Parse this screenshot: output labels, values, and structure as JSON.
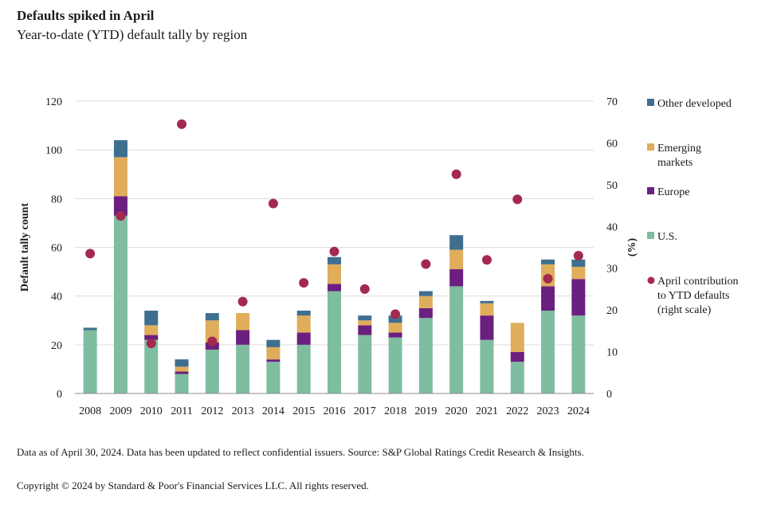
{
  "header": {
    "title": "Defaults spiked in April",
    "subtitle": "Year-to-date (YTD) default tally by region"
  },
  "footer": {
    "note": "Data as of April 30, 2024. Data has been updated to reflect confidential issuers. Source: S&P Global Ratings Credit Research & Insights.",
    "copyright": "Copyright © 2024 by Standard & Poor's Financial Services LLC. All rights reserved."
  },
  "chart_data": {
    "type": "bar",
    "stacked": true,
    "categories": [
      "2008",
      "2009",
      "2010",
      "2011",
      "2012",
      "2013",
      "2014",
      "2015",
      "2016",
      "2017",
      "2018",
      "2019",
      "2020",
      "2021",
      "2022",
      "2023",
      "2024"
    ],
    "ylabel": "Default tally count",
    "y2label": "(%)",
    "ylim": [
      0,
      120
    ],
    "yticks": [
      0,
      20,
      40,
      60,
      80,
      100,
      120
    ],
    "y2lim": [
      0,
      70
    ],
    "y2ticks": [
      0,
      10,
      20,
      30,
      40,
      50,
      60,
      70
    ],
    "grid": true,
    "legend_position": "right",
    "series": [
      {
        "name": "U.S.",
        "color": "#7fbda0",
        "values": [
          26,
          73,
          22,
          8,
          18,
          20,
          13,
          20,
          42,
          24,
          23,
          31,
          44,
          22,
          13,
          34,
          32
        ]
      },
      {
        "name": "Europe",
        "color": "#6b1f7f",
        "values": [
          0,
          8,
          2,
          1,
          3,
          6,
          1,
          5,
          3,
          4,
          2,
          4,
          7,
          10,
          4,
          10,
          15
        ]
      },
      {
        "name": "Emerging markets",
        "color": "#e0ad5b",
        "values": [
          0,
          16,
          4,
          2,
          9,
          7,
          5,
          7,
          8,
          2,
          4,
          5,
          8,
          5,
          12,
          9,
          5
        ]
      },
      {
        "name": "Other developed",
        "color": "#3f6f8f",
        "values": [
          1,
          7,
          6,
          3,
          3,
          0,
          3,
          2,
          3,
          2,
          3,
          2,
          6,
          1,
          0,
          2,
          3
        ]
      }
    ],
    "line_series": {
      "name": "April contribution to YTD defaults (right scale)",
      "color": "#a3294f",
      "marker": "circle",
      "values": [
        33.5,
        42.5,
        12,
        64.5,
        12.5,
        22,
        45.5,
        26.5,
        34,
        25,
        19,
        31,
        52.5,
        32,
        46.5,
        27.5,
        33
      ]
    },
    "legend": [
      {
        "label": "Other developed",
        "color": "#3f6f8f",
        "marker": "square"
      },
      {
        "label": "Emerging markets",
        "color": "#e0ad5b",
        "marker": "square"
      },
      {
        "label": "Europe",
        "color": "#6b1f7f",
        "marker": "square"
      },
      {
        "label": "U.S.",
        "color": "#7fbda0",
        "marker": "square"
      },
      {
        "label": "April contribution to YTD defaults (right scale)",
        "color": "#a3294f",
        "marker": "circle"
      }
    ]
  }
}
